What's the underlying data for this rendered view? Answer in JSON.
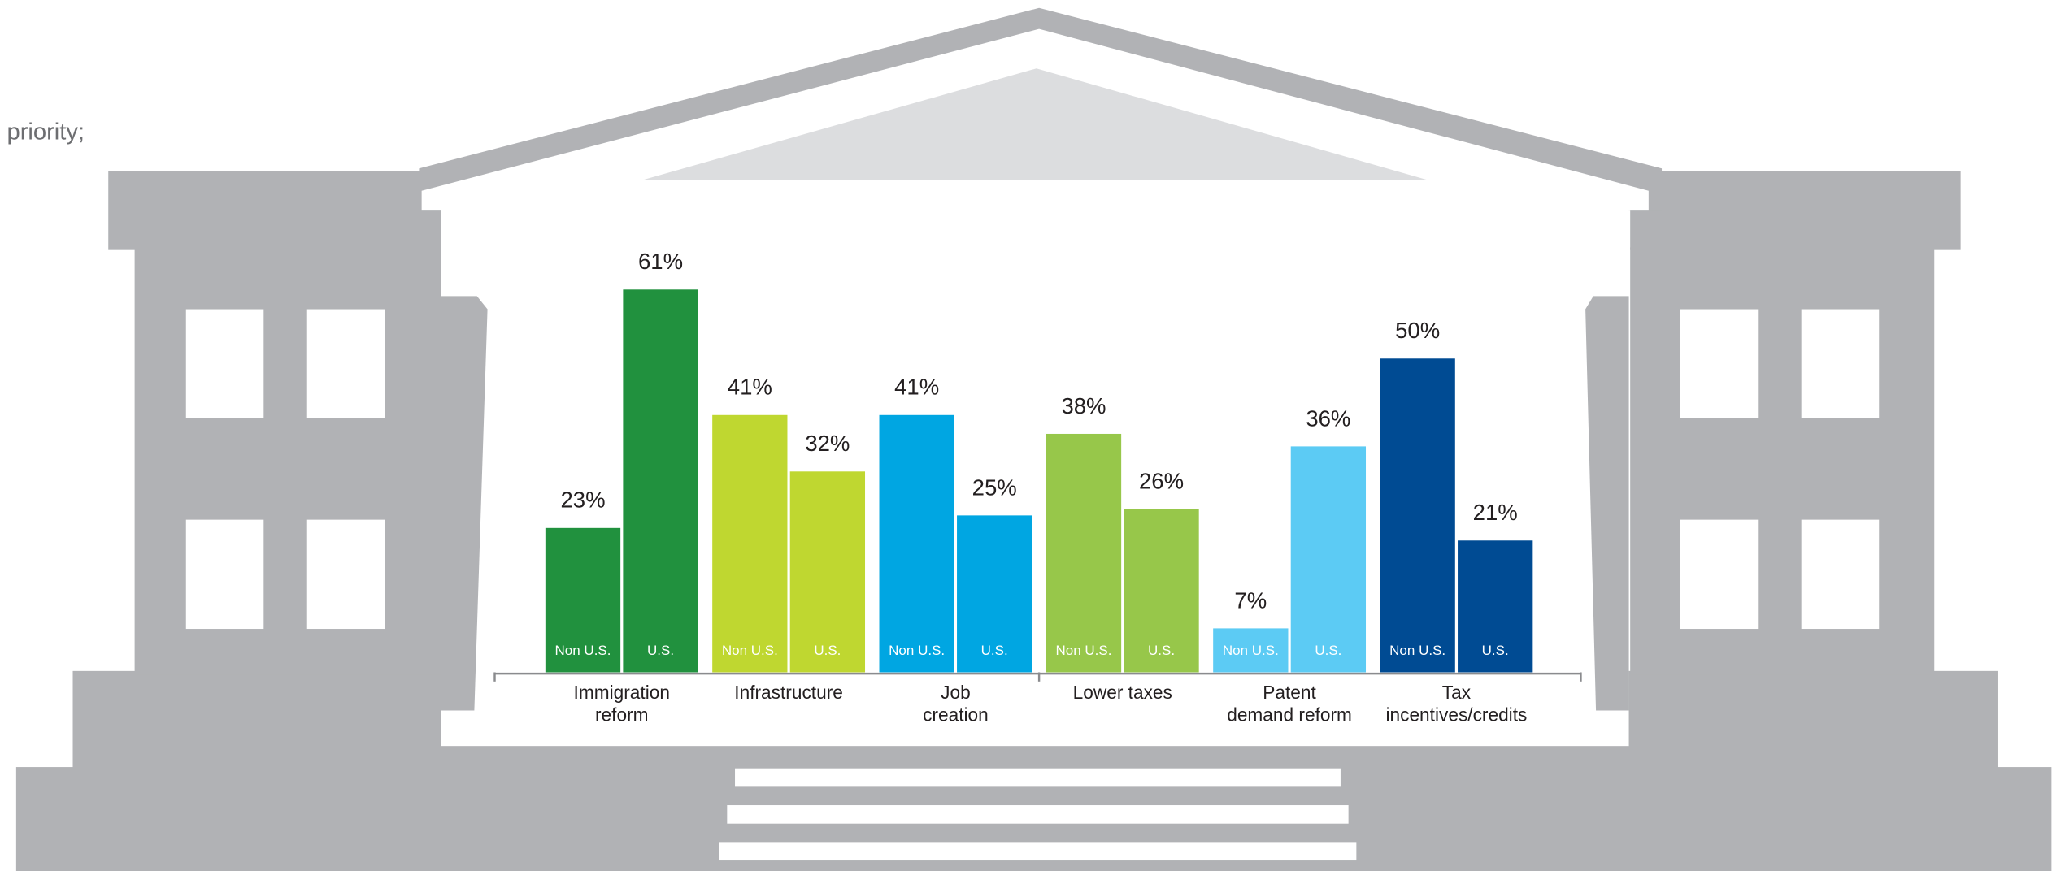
{
  "chart_data": {
    "type": "bar",
    "annotation": "priority;",
    "categories": [
      "Immigration\nreform",
      "Infrastructure",
      "Job\ncreation",
      "Lower taxes",
      "Patent\ndemand reform",
      "Tax\nincentives/credits"
    ],
    "colors": [
      "#21913e",
      "#bfd730",
      "#00a6e2",
      "#97c74a",
      "#5ccbf4",
      "#004b93"
    ],
    "series": [
      {
        "name": "Non U.S.",
        "values": [
          23,
          41,
          41,
          38,
          7,
          50
        ],
        "value_labels": [
          "23%",
          "41%",
          "41%",
          "38%",
          "7%",
          "50%"
        ]
      },
      {
        "name": "U.S.",
        "values": [
          61,
          32,
          25,
          26,
          36,
          21
        ],
        "value_labels": [
          "61%",
          "32%",
          "25%",
          "26%",
          "36%",
          "21%"
        ]
      }
    ]
  }
}
